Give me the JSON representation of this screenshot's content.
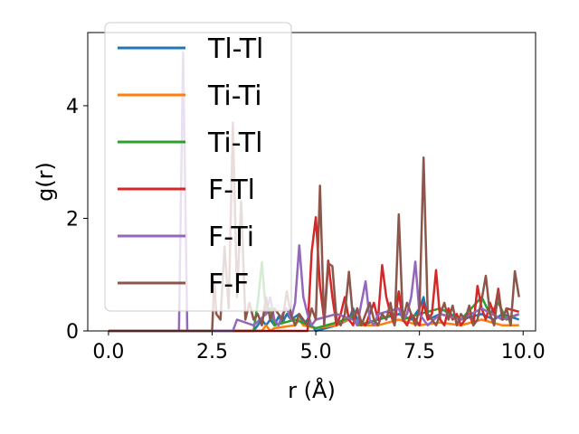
{
  "chart_data": {
    "type": "line",
    "xlabel": "r (Å)",
    "ylabel": "g(r)",
    "xlim": [
      -0.5,
      10.3
    ],
    "ylim": [
      0,
      5.3
    ],
    "xticks": [
      "0.0",
      "2.5",
      "5.0",
      "7.5",
      "10.0"
    ],
    "yticks": [
      "0",
      "2",
      "4"
    ],
    "grid": false,
    "legend_position": "top-left",
    "series": [
      {
        "name": "Tl-Tl",
        "color": "#1f77b4",
        "x": [
          0.0,
          3.5,
          3.6,
          3.7,
          3.8,
          3.9,
          4.0,
          4.1,
          4.2,
          4.3,
          4.4,
          4.5,
          4.6,
          4.7,
          4.8,
          4.9,
          5.0,
          5.5,
          5.8,
          5.9,
          6.0,
          6.1,
          6.5,
          7.0,
          7.3,
          7.5,
          7.6,
          7.7,
          8.0,
          8.5,
          9.0,
          9.3,
          9.5,
          9.9
        ],
        "y": [
          0.0,
          0.0,
          0.1,
          0.2,
          0.1,
          0.2,
          0.1,
          0.25,
          0.15,
          0.3,
          0.2,
          0.25,
          0.3,
          0.1,
          0.2,
          0.1,
          0.0,
          0.1,
          0.2,
          0.4,
          0.2,
          0.1,
          0.2,
          0.3,
          0.2,
          0.4,
          0.6,
          0.2,
          0.3,
          0.2,
          0.3,
          0.2,
          0.3,
          0.2
        ]
      },
      {
        "name": "Ti-Ti",
        "color": "#ff7f0e",
        "x": [
          0.0,
          3.7,
          3.8,
          3.9,
          4.0,
          4.5,
          4.6,
          4.7,
          5.0,
          5.5,
          5.9,
          6.0,
          6.5,
          7.0,
          7.5,
          8.0,
          8.5,
          9.0,
          9.5,
          9.9
        ],
        "y": [
          0.0,
          0.0,
          0.1,
          0.0,
          0.05,
          0.1,
          0.2,
          0.1,
          0.05,
          0.1,
          0.25,
          0.1,
          0.1,
          0.2,
          0.1,
          0.15,
          0.1,
          0.2,
          0.1,
          0.1
        ]
      },
      {
        "name": "Ti-Tl",
        "color": "#2ca02c",
        "x": [
          0.0,
          3.5,
          3.6,
          3.7,
          3.8,
          3.9,
          4.0,
          4.5,
          5.0,
          5.5,
          5.9,
          6.0,
          6.5,
          6.9,
          7.0,
          7.1,
          7.5,
          8.0,
          8.5,
          9.0,
          9.2,
          9.4,
          9.6,
          9.9
        ],
        "y": [
          0.0,
          0.0,
          0.5,
          1.22,
          0.3,
          0.4,
          0.1,
          0.2,
          0.05,
          0.15,
          0.25,
          0.1,
          0.2,
          0.3,
          0.7,
          0.2,
          0.3,
          0.4,
          0.2,
          0.6,
          0.3,
          0.5,
          0.2,
          0.3
        ]
      },
      {
        "name": "F-Tl",
        "color": "#d62728",
        "x": [
          0.0,
          4.8,
          4.9,
          5.0,
          5.1,
          5.2,
          5.3,
          5.4,
          5.5,
          5.6,
          5.7,
          5.8,
          5.9,
          6.0,
          6.1,
          6.2,
          6.3,
          6.4,
          6.5,
          6.6,
          6.7,
          6.8,
          6.9,
          7.0,
          7.1,
          7.2,
          7.3,
          7.4,
          7.5,
          7.6,
          7.7,
          7.8,
          7.9,
          8.0,
          8.1,
          8.2,
          8.3,
          8.4,
          8.5,
          8.6,
          8.7,
          8.8,
          8.9,
          9.0,
          9.1,
          9.2,
          9.3,
          9.4,
          9.5,
          9.6,
          9.7,
          9.8,
          9.9
        ],
        "y": [
          0.0,
          0.0,
          1.4,
          2.02,
          0.8,
          0.2,
          1.25,
          0.6,
          0.1,
          0.3,
          0.6,
          0.2,
          0.1,
          0.4,
          0.15,
          0.1,
          0.3,
          0.5,
          0.2,
          1.17,
          0.6,
          0.3,
          0.1,
          0.7,
          0.2,
          0.1,
          0.3,
          0.2,
          0.1,
          0.5,
          0.2,
          0.3,
          1.08,
          0.2,
          0.1,
          0.4,
          0.2,
          0.3,
          0.1,
          0.2,
          0.3,
          0.1,
          0.8,
          0.4,
          0.2,
          0.5,
          0.3,
          0.75,
          0.2,
          0.4,
          0.38,
          0.36,
          0.34
        ]
      },
      {
        "name": "F-Ti",
        "color": "#9467bd",
        "x": [
          0.0,
          1.7,
          1.8,
          1.9,
          2.0,
          3.0,
          3.1,
          3.5,
          3.8,
          3.9,
          4.0,
          4.1,
          4.2,
          4.3,
          4.4,
          4.5,
          4.6,
          4.7,
          4.8,
          4.9,
          5.0,
          5.5,
          5.9,
          6.0,
          6.1,
          6.2,
          6.3,
          6.4,
          6.5,
          7.0,
          7.1,
          7.2,
          7.3,
          7.4,
          7.5,
          7.6,
          7.7,
          8.0,
          8.5,
          9.0,
          9.5,
          9.9
        ],
        "y": [
          0.0,
          0.0,
          4.95,
          0.0,
          0.0,
          0.0,
          0.2,
          0.1,
          0.3,
          0.6,
          0.2,
          0.1,
          0.3,
          0.4,
          0.2,
          0.5,
          1.52,
          0.6,
          0.3,
          0.1,
          0.2,
          0.3,
          0.2,
          0.1,
          0.5,
          0.88,
          0.2,
          0.1,
          0.3,
          0.4,
          0.2,
          0.3,
          0.6,
          1.23,
          0.3,
          0.2,
          0.1,
          0.3,
          0.2,
          0.4,
          0.2,
          0.3
        ]
      },
      {
        "name": "F-F",
        "color": "#8c564b",
        "x": [
          0.0,
          2.5,
          2.55,
          2.6,
          2.7,
          2.8,
          2.9,
          3.0,
          3.1,
          3.2,
          3.3,
          3.4,
          3.5,
          3.6,
          3.7,
          3.8,
          3.9,
          4.0,
          4.1,
          4.2,
          4.3,
          4.4,
          4.5,
          4.6,
          4.7,
          4.8,
          4.9,
          5.0,
          5.1,
          5.2,
          5.3,
          5.4,
          5.5,
          5.6,
          5.7,
          5.8,
          5.9,
          6.0,
          6.1,
          6.2,
          6.3,
          6.4,
          6.5,
          6.6,
          6.7,
          6.8,
          6.9,
          7.0,
          7.1,
          7.2,
          7.3,
          7.4,
          7.5,
          7.6,
          7.7,
          7.8,
          7.9,
          8.0,
          8.1,
          8.2,
          8.3,
          8.4,
          8.5,
          8.6,
          8.7,
          8.8,
          8.9,
          9.0,
          9.1,
          9.2,
          9.3,
          9.4,
          9.5,
          9.6,
          9.7,
          9.8,
          9.9
        ],
        "y": [
          0.0,
          0.0,
          0.9,
          0.3,
          0.2,
          1.5,
          0.4,
          3.7,
          0.6,
          2.3,
          0.2,
          0.5,
          0.2,
          0.3,
          0.1,
          0.6,
          0.2,
          0.4,
          0.3,
          0.2,
          0.7,
          0.3,
          0.1,
          0.3,
          0.2,
          0.1,
          0.4,
          0.2,
          2.58,
          0.1,
          1.2,
          1.15,
          0.2,
          0.1,
          0.3,
          1.05,
          0.2,
          0.4,
          0.1,
          0.3,
          0.5,
          0.2,
          0.1,
          0.3,
          0.2,
          0.5,
          0.1,
          2.07,
          0.2,
          0.5,
          0.3,
          0.1,
          0.4,
          3.08,
          0.3,
          0.2,
          0.1,
          0.3,
          0.5,
          0.2,
          0.45,
          0.1,
          0.3,
          0.2,
          0.45,
          0.1,
          0.2,
          0.55,
          0.98,
          0.3,
          0.1,
          0.7,
          0.2,
          0.4,
          0.1,
          1.06,
          0.6
        ]
      }
    ]
  }
}
